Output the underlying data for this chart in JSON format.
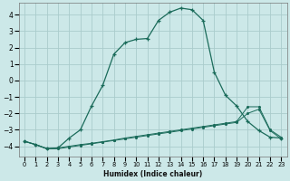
{
  "xlabel": "Humidex (Indice chaleur)",
  "bg_color": "#cce8e8",
  "grid_color": "#aacccc",
  "line_color": "#1a6b5a",
  "xlim": [
    -0.5,
    23.5
  ],
  "ylim": [
    -4.6,
    4.7
  ],
  "yticks": [
    -4,
    -3,
    -2,
    -1,
    0,
    1,
    2,
    3,
    4
  ],
  "xticks": [
    0,
    1,
    2,
    3,
    4,
    5,
    6,
    7,
    8,
    9,
    10,
    11,
    12,
    13,
    14,
    15,
    16,
    17,
    18,
    19,
    20,
    21,
    22,
    23
  ],
  "line1_x": [
    0,
    1,
    2,
    3,
    4,
    5,
    6,
    7,
    8,
    9,
    10,
    11,
    12,
    13,
    14,
    15,
    16,
    17,
    18,
    19,
    20,
    21,
    22,
    23
  ],
  "line1_y": [
    -3.7,
    -3.9,
    -4.15,
    -4.15,
    -4.05,
    -3.95,
    -3.85,
    -3.75,
    -3.65,
    -3.55,
    -3.45,
    -3.35,
    -3.25,
    -3.15,
    -3.05,
    -2.95,
    -2.85,
    -2.75,
    -2.65,
    -2.55,
    -2.0,
    -1.75,
    -3.05,
    -3.55
  ],
  "line2_x": [
    0,
    1,
    2,
    3,
    4,
    5,
    6,
    7,
    8,
    9,
    10,
    11,
    12,
    13,
    14,
    15,
    16,
    17,
    18,
    19,
    20,
    21,
    22,
    23
  ],
  "line2_y": [
    -3.7,
    -3.9,
    -4.15,
    -4.1,
    -4.0,
    -3.9,
    -3.82,
    -3.72,
    -3.62,
    -3.5,
    -3.4,
    -3.3,
    -3.2,
    -3.1,
    -3.0,
    -2.9,
    -2.8,
    -2.7,
    -2.6,
    -2.5,
    -1.6,
    -1.6,
    -3.0,
    -3.45
  ],
  "line3_x": [
    0,
    1,
    2,
    3,
    4,
    5,
    6,
    7,
    8,
    9,
    10,
    11,
    12,
    13,
    14,
    15,
    16,
    17,
    18,
    19,
    20,
    21,
    22,
    23
  ],
  "line3_y": [
    -3.7,
    -3.9,
    -4.15,
    -4.1,
    -3.5,
    -3.0,
    -1.55,
    -0.3,
    1.6,
    2.3,
    2.5,
    2.55,
    3.65,
    4.15,
    4.4,
    4.3,
    3.65,
    0.5,
    -0.9,
    -1.55,
    -2.5,
    -3.05,
    -3.45,
    -3.5
  ]
}
